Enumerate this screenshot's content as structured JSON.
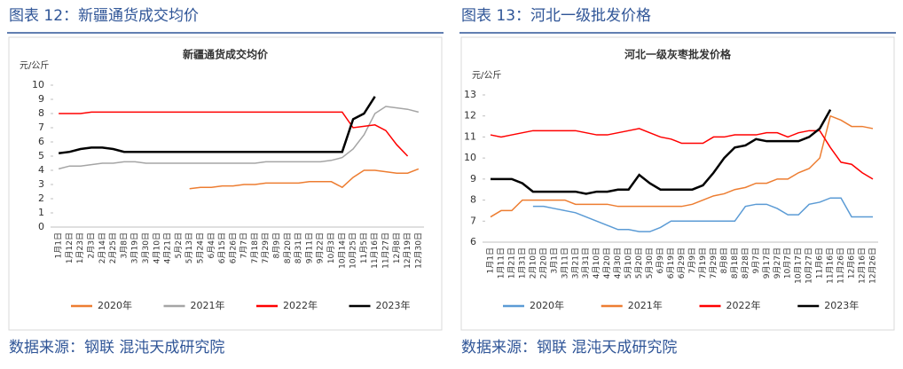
{
  "captions": [
    "图表 12：新疆通货成交均价",
    "图表 13：河北一级批发价格"
  ],
  "sources": [
    "数据来源：钢联 混沌天成研究院",
    "数据来源：钢联 混沌天成研究院"
  ],
  "chart_data": [
    {
      "type": "line",
      "title": "新疆通货成交均价",
      "unit": "元/公斤",
      "categories": [
        "1月1日",
        "1月12日",
        "1月23日",
        "2月3日",
        "2月14日",
        "2月25日",
        "3月8日",
        "3月19日",
        "3月30日",
        "4月10日",
        "4月21日",
        "5月2日",
        "5月13日",
        "5月24日",
        "6月4日",
        "6月15日",
        "6月26日",
        "7月7日",
        "7月18日",
        "7月29日",
        "8月9日",
        "8月20日",
        "8月31日",
        "9月11日",
        "9月22日",
        "10月3日",
        "10月14日",
        "10月25日",
        "11月5日",
        "11月16日",
        "11月27日",
        "12月8日",
        "12月19日",
        "12月30日"
      ],
      "ylim": [
        0,
        10
      ],
      "yticks": [
        0,
        1,
        2,
        3,
        4,
        5,
        6,
        7,
        8,
        9,
        10
      ],
      "series": [
        {
          "name": "2020年",
          "color": "#ed7d31",
          "values": [
            null,
            null,
            null,
            null,
            null,
            null,
            null,
            null,
            null,
            null,
            null,
            null,
            2.7,
            2.8,
            2.8,
            2.9,
            2.9,
            3.0,
            3.0,
            3.1,
            3.1,
            3.1,
            3.1,
            3.2,
            3.2,
            3.2,
            2.8,
            3.5,
            4.0,
            4.0,
            3.9,
            3.8,
            3.8,
            4.1
          ]
        },
        {
          "name": "2021年",
          "color": "#a5a5a5",
          "values": [
            4.1,
            4.3,
            4.3,
            4.4,
            4.5,
            4.5,
            4.6,
            4.6,
            4.5,
            4.5,
            4.5,
            4.5,
            4.5,
            4.5,
            4.5,
            4.5,
            4.5,
            4.5,
            4.5,
            4.6,
            4.6,
            4.6,
            4.6,
            4.6,
            4.6,
            4.7,
            4.9,
            5.5,
            6.5,
            8.0,
            8.5,
            8.4,
            8.3,
            8.1
          ]
        },
        {
          "name": "2022年",
          "color": "#ff0000",
          "values": [
            8.0,
            8.0,
            8.0,
            8.1,
            8.1,
            8.1,
            8.1,
            8.1,
            8.1,
            8.1,
            8.1,
            8.1,
            8.1,
            8.1,
            8.1,
            8.1,
            8.1,
            8.1,
            8.1,
            8.1,
            8.1,
            8.1,
            8.1,
            8.1,
            8.1,
            8.1,
            8.1,
            7.0,
            7.1,
            7.2,
            6.8,
            5.8,
            5.0,
            null
          ]
        },
        {
          "name": "2023年",
          "color": "#000000",
          "values": [
            5.2,
            5.3,
            5.5,
            5.6,
            5.6,
            5.5,
            5.3,
            5.3,
            5.3,
            5.3,
            5.3,
            5.3,
            5.3,
            5.3,
            5.3,
            5.3,
            5.3,
            5.3,
            5.3,
            5.3,
            5.3,
            5.3,
            5.3,
            5.3,
            5.3,
            5.3,
            5.3,
            7.6,
            8.0,
            9.2,
            null,
            null,
            null,
            null
          ]
        }
      ]
    },
    {
      "type": "line",
      "title": "河北一级灰枣批发价格",
      "unit": "元/公斤",
      "categories": [
        "1月1日",
        "1月11日",
        "1月21日",
        "1月31日",
        "2月10日",
        "2月20日",
        "3月1日",
        "3月11日",
        "3月21日",
        "3月31日",
        "4月10日",
        "4月20日",
        "4月30日",
        "5月10日",
        "5月20日",
        "5月30日",
        "6月9日",
        "6月19日",
        "6月29日",
        "7月9日",
        "7月19日",
        "7月29日",
        "8月8日",
        "8月18日",
        "8月28日",
        "9月7日",
        "9月17日",
        "9月27日",
        "10月7日",
        "10月17日",
        "10月27日",
        "11月6日",
        "11月16日",
        "11月26日",
        "12月6日",
        "12月16日",
        "12月26日"
      ],
      "ylim": [
        6,
        13
      ],
      "yticks": [
        6,
        7,
        8,
        9,
        10,
        11,
        12,
        13
      ],
      "series": [
        {
          "name": "2020年",
          "color": "#5b9bd5",
          "values": [
            null,
            null,
            null,
            null,
            7.7,
            7.7,
            7.6,
            7.5,
            7.4,
            7.2,
            7.0,
            6.8,
            6.6,
            6.6,
            6.5,
            6.5,
            6.7,
            7.0,
            7.0,
            7.0,
            7.0,
            7.0,
            7.0,
            7.0,
            7.7,
            7.8,
            7.8,
            7.6,
            7.3,
            7.3,
            7.8,
            7.9,
            8.1,
            8.1,
            7.2,
            7.2,
            7.2
          ]
        },
        {
          "name": "2021年",
          "color": "#ed7d31",
          "values": [
            7.2,
            7.5,
            7.5,
            8.0,
            8.0,
            8.0,
            8.0,
            8.0,
            7.8,
            7.8,
            7.8,
            7.8,
            7.7,
            7.7,
            7.7,
            7.7,
            7.7,
            7.7,
            7.7,
            7.8,
            8.0,
            8.2,
            8.3,
            8.5,
            8.6,
            8.8,
            8.8,
            9.0,
            9.0,
            9.3,
            9.5,
            10.0,
            12.0,
            11.8,
            11.5,
            11.5,
            11.4
          ]
        },
        {
          "name": "2022年",
          "color": "#ff0000",
          "values": [
            11.1,
            11.0,
            11.1,
            11.2,
            11.3,
            11.3,
            11.3,
            11.3,
            11.3,
            11.2,
            11.1,
            11.1,
            11.2,
            11.3,
            11.4,
            11.2,
            11.0,
            10.9,
            10.7,
            10.7,
            10.7,
            11.0,
            11.0,
            11.1,
            11.1,
            11.1,
            11.2,
            11.2,
            11.0,
            11.2,
            11.3,
            11.3,
            10.5,
            9.8,
            9.7,
            9.3,
            9.0
          ]
        },
        {
          "name": "2023年",
          "color": "#000000",
          "values": [
            9.0,
            9.0,
            9.0,
            8.8,
            8.4,
            8.4,
            8.4,
            8.4,
            8.4,
            8.3,
            8.4,
            8.4,
            8.5,
            8.5,
            9.2,
            8.8,
            8.5,
            8.5,
            8.5,
            8.5,
            8.7,
            9.3,
            10.0,
            10.5,
            10.6,
            10.9,
            10.8,
            10.8,
            10.8,
            10.8,
            11.0,
            11.4,
            12.3,
            null,
            null,
            null,
            null
          ]
        }
      ]
    }
  ]
}
